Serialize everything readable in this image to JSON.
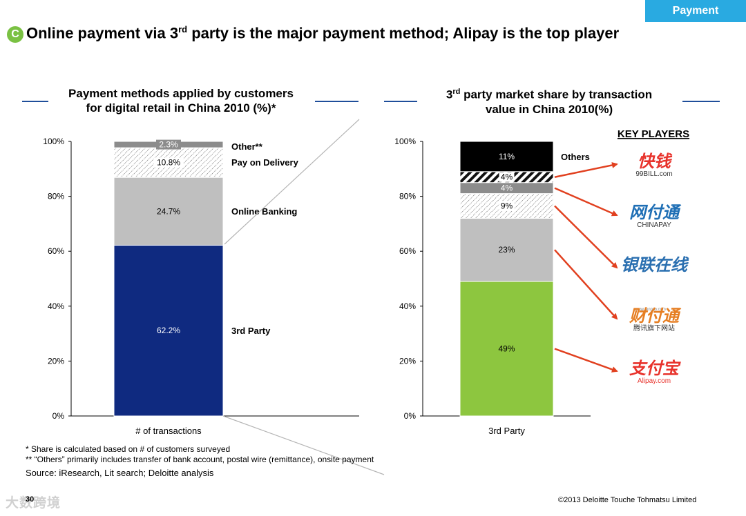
{
  "section_tag": "Payment",
  "badge_letter": "C",
  "headline": {
    "pre": "Online payment via 3",
    "sup": "rd",
    "post": " party is the major payment method; Alipay is the top player"
  },
  "left_title": {
    "line1": "Payment methods applied by customers",
    "line2": "for digital retail in China 2010 (%)*"
  },
  "right_title": {
    "line1_pre": "3",
    "line1_sup": "rd",
    "line1_post": " party market share by transaction",
    "line2": "value in China 2010(%)"
  },
  "key_players_label": "KEY PLAYERS",
  "chart_data": [
    {
      "type": "bar",
      "stacked": true,
      "title": "Payment methods applied by customers for digital retail in China 2010 (%)*",
      "categories": [
        "# of transactions"
      ],
      "ylim": [
        0,
        100
      ],
      "yticks": [
        "0%",
        "20%",
        "40%",
        "60%",
        "80%",
        "100%"
      ],
      "series": [
        {
          "name": "3rd Party",
          "value": 62.2,
          "label": "62.2%",
          "color": "#0f2a80"
        },
        {
          "name": "Online Banking",
          "value": 24.7,
          "label": "24.7%",
          "color": "#bfbfbf"
        },
        {
          "name": "Pay on Delivery",
          "value": 10.8,
          "label": "10.8%",
          "color": "#ffffff",
          "pattern": "dots-diagonal"
        },
        {
          "name": "Other**",
          "value": 2.3,
          "label": "2.3%",
          "color": "#8c8c8c"
        }
      ]
    },
    {
      "type": "bar",
      "stacked": true,
      "title": "3rd party market share by transaction value in China 2010(%)",
      "categories": [
        "3rd Party"
      ],
      "ylim": [
        0,
        100
      ],
      "yticks": [
        "0%",
        "20%",
        "40%",
        "60%",
        "80%",
        "100%"
      ],
      "series": [
        {
          "value": 49,
          "label": "49%",
          "color": "#8dc63f",
          "player": "Alipay.com"
        },
        {
          "value": 23,
          "label": "23%",
          "color": "#bfbfbf",
          "player": "财付通"
        },
        {
          "value": 9,
          "label": "9%",
          "color": "#ffffff",
          "pattern": "dots-diagonal",
          "player": "银联在线"
        },
        {
          "value": 4,
          "label": "4%",
          "color": "#8c8c8c",
          "player": "网付通 CHINAPAY"
        },
        {
          "value": 4,
          "label": "4%",
          "color": "#ffffff",
          "pattern": "stripes",
          "player": "快钱 99BILL.com"
        },
        {
          "name": "Others",
          "value": 11,
          "label": "11%",
          "color": "#000000"
        }
      ]
    }
  ],
  "logos": [
    {
      "main": "快钱",
      "sub": "99BILL.com",
      "color": "#e8322b"
    },
    {
      "main": "网付通",
      "sub": "CHINAPAY",
      "color": "#1f6fb5"
    },
    {
      "main": "银联在线",
      "sub": "",
      "color": "#2a6fb0"
    },
    {
      "main": "财付通",
      "sub": "腾讯旗下网站",
      "color": "#e67e22",
      "top": "www.tenpay.com"
    },
    {
      "main": "支付宝",
      "sub": "Alipay.com",
      "color": "#e8322b"
    }
  ],
  "footnotes": [
    "* Share is calculated based on # of customers surveyed",
    "** “Others” primarily includes transfer of bank account, postal wire (remittance), onsite payment"
  ],
  "source": "Source: iResearch, Lit search; Deloitte analysis",
  "page_number": "30",
  "copyright": "©2013 Deloitte Touche Tohmatsu Limited",
  "watermark": "大数跨境"
}
